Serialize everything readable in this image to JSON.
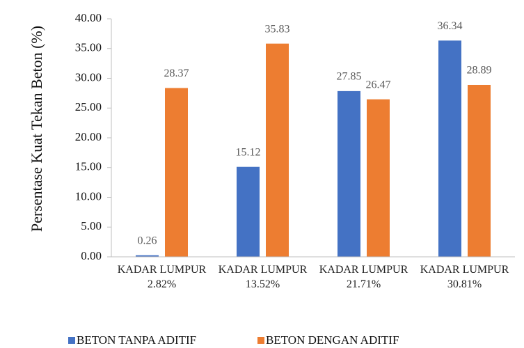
{
  "chart_data": {
    "type": "bar",
    "y_label": "Persentase Kuat Tekan Beton (%)",
    "categories": [
      "KADAR LUMPUR 2.82%",
      "KADAR LUMPUR 13.52%",
      "KADAR LUMPUR 21.71%",
      "KADAR LUMPUR 30.81%"
    ],
    "series": [
      {
        "name": "BETON TANPA ADITIF",
        "color": "#4472c4",
        "values": [
          0.26,
          15.12,
          27.85,
          36.34
        ]
      },
      {
        "name": "BETON DENGAN ADITIF",
        "color": "#ed7d31",
        "values": [
          28.37,
          35.83,
          26.47,
          28.89
        ]
      }
    ],
    "ylim": [
      0,
      40
    ],
    "yticks": [
      {
        "value": 0,
        "label": "0.00"
      },
      {
        "value": 5,
        "label": "5.00"
      },
      {
        "value": 10,
        "label": "10.00"
      },
      {
        "value": 15,
        "label": "15.00"
      },
      {
        "value": 20,
        "label": "20.00"
      },
      {
        "value": 25,
        "label": "25.00"
      },
      {
        "value": 30,
        "label": "30.00"
      },
      {
        "value": 35,
        "label": "35.00"
      },
      {
        "value": 40,
        "label": "40.00"
      }
    ],
    "grid": false,
    "legend": "bottom"
  }
}
